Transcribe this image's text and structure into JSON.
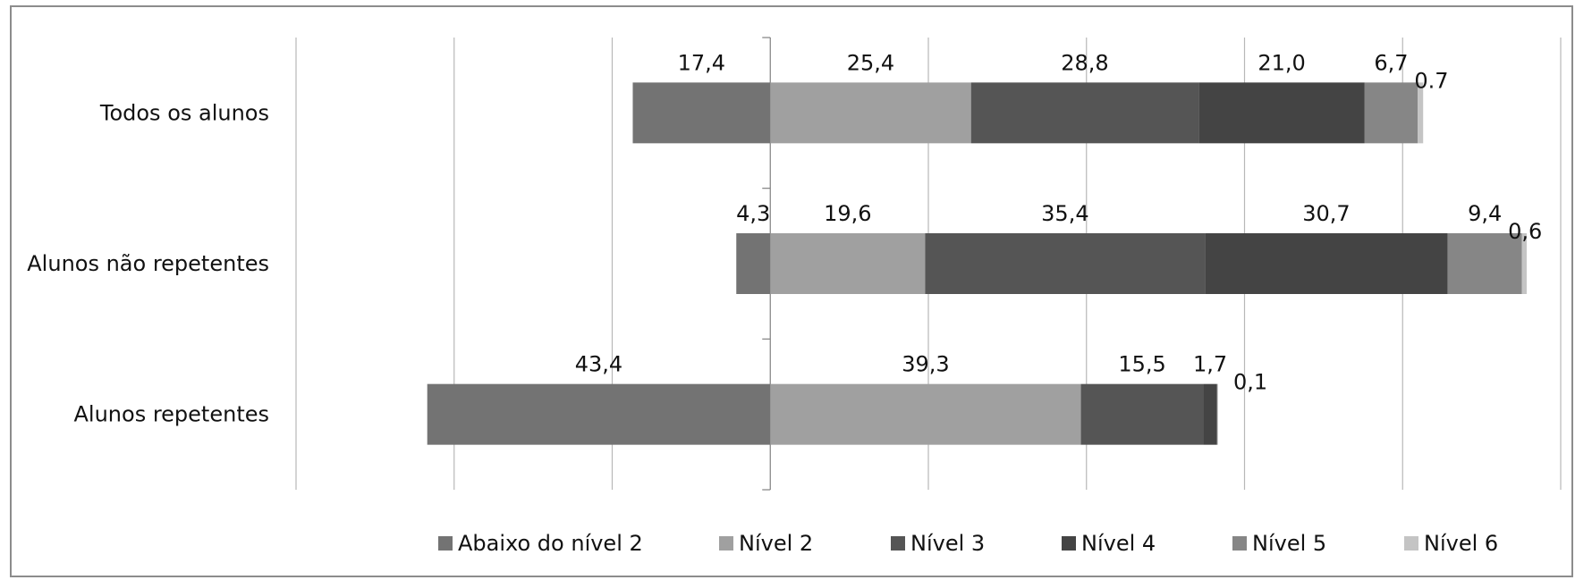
{
  "chart_data": {
    "type": "bar",
    "orientation": "horizontal",
    "stacked": "diverging",
    "categories": [
      "Todos os alunos",
      "Alunos não repetentes",
      "Alunos repetentes"
    ],
    "series": [
      {
        "name": "Abaixo do nível 2",
        "values": [
          17.4,
          4.3,
          43.4
        ],
        "labels": [
          "17,4",
          "4,3",
          "43,4"
        ],
        "color": "#737373"
      },
      {
        "name": "Nível 2",
        "values": [
          25.4,
          19.6,
          39.3
        ],
        "labels": [
          "25,4",
          "19,6",
          "39,3"
        ],
        "color": "#a0a0a0"
      },
      {
        "name": "Nível 3",
        "values": [
          28.8,
          35.4,
          15.5
        ],
        "labels": [
          "28,8",
          "35,4",
          "15,5"
        ],
        "color": "#555555"
      },
      {
        "name": "Nível 4",
        "values": [
          21.0,
          30.7,
          1.7
        ],
        "labels": [
          "21,0",
          "30,7",
          "1,7"
        ],
        "color": "#444444"
      },
      {
        "name": "Nível 5",
        "values": [
          6.7,
          9.4,
          0.1
        ],
        "labels": [
          "6,7",
          "9,4",
          "0,1"
        ],
        "color": "#868686"
      },
      {
        "name": "Nível 6",
        "values": [
          0.7,
          0.6,
          0.0
        ],
        "labels": [
          "0.7",
          "0,6",
          ""
        ],
        "color": "#c4c4c4"
      }
    ],
    "xlim": [
      -60,
      100
    ],
    "grid": true,
    "legend": "bottom"
  }
}
